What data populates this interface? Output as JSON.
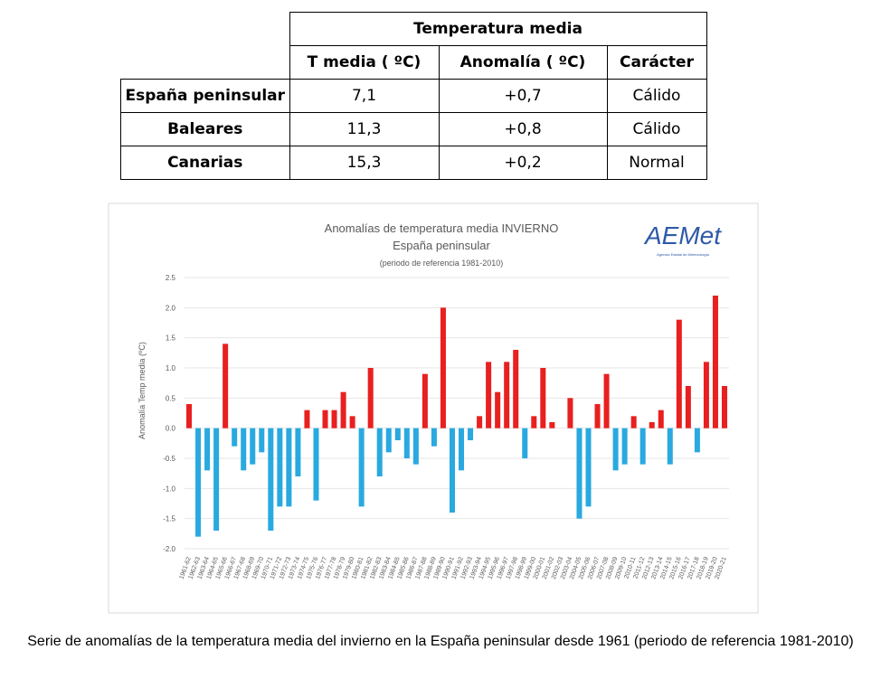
{
  "table": {
    "group_header": "Temperatura media",
    "columns": [
      "T media ( ºC)",
      "Anomalía ( ºC)",
      "Carácter"
    ],
    "rows": [
      [
        "España peninsular",
        "7,1",
        "+0,7",
        "Cálido"
      ],
      [
        "Baleares",
        "11,3",
        "+0,8",
        "Cálido"
      ],
      [
        "Canarias",
        "15,3",
        "+0,2",
        "Normal"
      ]
    ]
  },
  "chart_data": {
    "type": "bar",
    "title": "Anomalías de temperatura media INVIERNO",
    "subtitle": "España peninsular",
    "note": "(periodo de referencia 1981-2010)",
    "logo": "AEMet",
    "logo_subtitle": "Agencia Estatal de Meteorología",
    "y_label": "Anomalía Temp media (ºC)",
    "categories": [
      "1961-62",
      "1962-63",
      "1963-64",
      "1964-65",
      "1965-66",
      "1966-67",
      "1967-68",
      "1968-69",
      "1969-70",
      "1970-71",
      "1971-72",
      "1972-73",
      "1973-74",
      "1974-75",
      "1975-76",
      "1976-77",
      "1977-78",
      "1978-79",
      "1979-80",
      "1980-81",
      "1981-82",
      "1982-83",
      "1983-84",
      "1984-85",
      "1985-86",
      "1986-87",
      "1987-88",
      "1988-89",
      "1989-90",
      "1990-91",
      "1991-92",
      "1992-93",
      "1993-94",
      "1994-95",
      "1995-96",
      "1996-97",
      "1997-98",
      "1998-99",
      "1999-00",
      "2000-01",
      "2001-02",
      "2002-03",
      "2003-04",
      "2004-05",
      "2005-06",
      "2006-07",
      "2007-08",
      "2008-09",
      "2009-10",
      "2010-11",
      "2011-12",
      "2012-13",
      "2013-14",
      "2014-15",
      "2015-16",
      "2016-17",
      "2017-18",
      "2018-19",
      "2019-20",
      "2020-21"
    ],
    "values": [
      0.4,
      -1.8,
      -0.7,
      -1.7,
      1.4,
      -0.3,
      -0.7,
      -0.6,
      -0.4,
      -1.7,
      -1.3,
      -1.3,
      -0.8,
      0.3,
      -1.2,
      0.3,
      0.3,
      0.6,
      0.2,
      -1.3,
      1.0,
      -0.8,
      -0.4,
      -0.2,
      -0.5,
      -0.6,
      0.9,
      -0.3,
      2.0,
      -1.4,
      -0.7,
      -0.2,
      0.2,
      1.1,
      0.6,
      1.1,
      1.3,
      -0.5,
      0.2,
      1.0,
      0.1,
      0,
      0.5,
      -1.5,
      -1.3,
      0.4,
      0.9,
      -0.7,
      -0.6,
      0.2,
      -0.6,
      0.1,
      0.3,
      -0.6,
      1.8,
      0.7,
      -0.4,
      1.1,
      2.2,
      0.7
    ],
    "positive_color": "#e8201f",
    "negative_color": "#29a9e0",
    "ylim": [
      -2,
      2.5
    ],
    "yticks": [
      {
        "value": -2,
        "label": "-2.0"
      },
      -1.5,
      {
        "value": -1,
        "label": "-1.0"
      },
      -0.5,
      {
        "value": 0,
        "label": "0.0"
      },
      0.5,
      {
        "value": 1,
        "label": "1.0"
      },
      1.5,
      {
        "value": 2,
        "label": "2.0"
      },
      2.5
    ],
    "grid": true
  },
  "caption": "Serie de anomalías de la temperatura media del invierno en la España peninsular desde 1961 (periodo de referencia 1981-2010)"
}
